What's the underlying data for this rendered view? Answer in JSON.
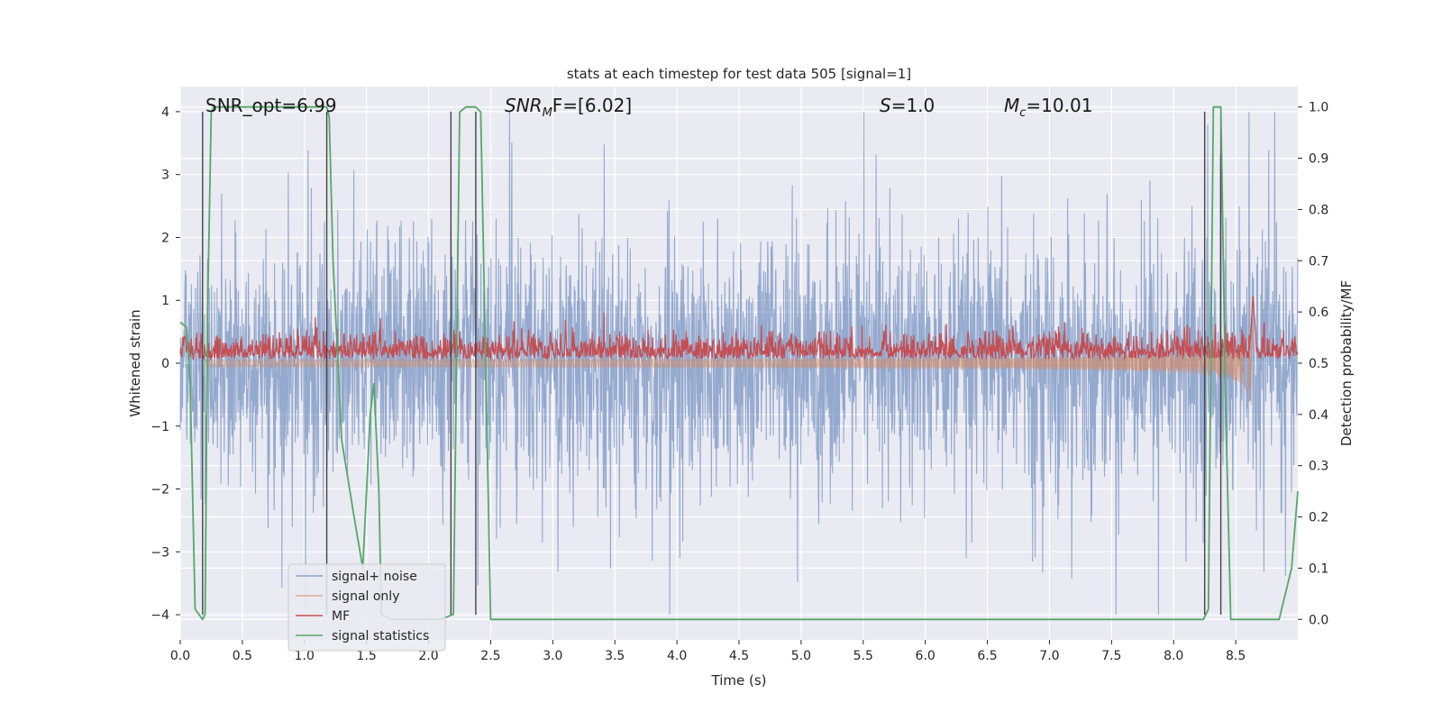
{
  "chart_data": {
    "type": "line",
    "title": "stats at each timestep for test data 505 [signal=1]",
    "xlabel": "Time (s)",
    "ylabel_left": "Whitened strain",
    "ylabel_right": "Detection probability/MF",
    "xlim": [
      0,
      9.0
    ],
    "ylim_left": [
      -4.4,
      4.4
    ],
    "ylim_right": [
      -0.04,
      1.04
    ],
    "x_ticks": [
      0.0,
      0.5,
      1.0,
      1.5,
      2.0,
      2.5,
      3.0,
      3.5,
      4.0,
      4.5,
      5.0,
      5.5,
      6.0,
      6.5,
      7.0,
      7.5,
      8.0,
      8.5
    ],
    "x_tick_labels": [
      "0.0",
      "0.5",
      "1.0",
      "1.5",
      "2.0",
      "2.5",
      "3.0",
      "3.5",
      "4.0",
      "4.5",
      "5.0",
      "5.5",
      "6.0",
      "6.5",
      "7.0",
      "7.5",
      "8.0",
      "8.5"
    ],
    "y_left_ticks": [
      -4,
      -3,
      -2,
      -1,
      0,
      1,
      2,
      3,
      4
    ],
    "y_left_tick_labels": [
      "−4",
      "−3",
      "−2",
      "−1",
      "0",
      "1",
      "2",
      "3",
      "4"
    ],
    "y_right_ticks": [
      0.0,
      0.1,
      0.2,
      0.3,
      0.4,
      0.5,
      0.6,
      0.7,
      0.8,
      0.9,
      1.0
    ],
    "y_right_tick_labels": [
      "0.0",
      "0.1",
      "0.2",
      "0.3",
      "0.4",
      "0.5",
      "0.6",
      "0.7",
      "0.8",
      "0.9",
      "1.0"
    ],
    "grid": true,
    "legend_position": "lower-left",
    "background_color": "#eaeaf2",
    "annotations": {
      "snr_opt": "SNR_opt=6.99",
      "snr_mf_a": "SNR",
      "snr_mf_sub": "M",
      "snr_mf_b": "F=[6.02]",
      "s_a": "S",
      "s_b": "=1.0",
      "mc_a": "M",
      "mc_sub": "c",
      "mc_b": "=10.01"
    },
    "series": [
      {
        "name": "signal+ noise",
        "axis": "left",
        "color": "#4c72b0",
        "description_kind": "noise",
        "x_range": [
          0.0,
          9.0
        ],
        "typical_amplitude": 1.6,
        "peak_values": {
          "max": 4.0,
          "min": -4.0
        }
      },
      {
        "name": "signal only",
        "axis": "left",
        "color": "#dd8452",
        "description_kind": "chirp",
        "x_range": [
          0.2,
          8.65
        ],
        "amplitude_start": 0.02,
        "amplitude_peak": 1.3,
        "merger_time": 8.64
      },
      {
        "name": "MF",
        "axis": "right",
        "color": "#c44e52",
        "description_kind": "noise",
        "x_range": [
          0.0,
          9.0
        ],
        "baseline": 0.52,
        "spread": 0.03,
        "peak": {
          "x": 8.64,
          "y": 0.63
        }
      },
      {
        "name": "signal statistics",
        "axis": "right",
        "color": "#55a868",
        "x": [
          0.0,
          0.05,
          0.08,
          0.12,
          0.18,
          0.2,
          0.22,
          0.25,
          0.27,
          0.5,
          0.8,
          1.0,
          1.15,
          1.18,
          1.2,
          1.23,
          1.3,
          1.4,
          1.47,
          1.5,
          1.53,
          1.56,
          1.6,
          1.62,
          1.7,
          1.8,
          2.0,
          2.1,
          2.2,
          2.25,
          2.3,
          2.38,
          2.42,
          2.5,
          3.0,
          4.0,
          5.0,
          6.0,
          7.0,
          8.0,
          8.24,
          8.28,
          8.32,
          8.36,
          8.38,
          8.42,
          8.46,
          8.55,
          8.7,
          8.85,
          8.95,
          9.0
        ],
        "y": [
          0.58,
          0.57,
          0.46,
          0.02,
          0.0,
          0.01,
          0.6,
          0.99,
          1.0,
          1.0,
          1.0,
          1.0,
          1.0,
          1.0,
          0.98,
          0.7,
          0.35,
          0.2,
          0.1,
          0.25,
          0.4,
          0.46,
          0.25,
          0.01,
          0.0,
          0.0,
          0.0,
          0.0,
          0.01,
          0.99,
          1.0,
          1.0,
          0.99,
          0.0,
          0.0,
          0.0,
          0.0,
          0.0,
          0.0,
          0.0,
          0.0,
          0.02,
          1.0,
          1.0,
          1.0,
          0.4,
          0.0,
          0.0,
          0.0,
          0.0,
          0.1,
          0.25
        ]
      }
    ],
    "vertical_lines": {
      "axis": "left",
      "color": "#444444",
      "x": [
        0.18,
        1.18,
        2.18,
        2.38,
        8.25,
        8.38
      ],
      "y_range": [
        -4,
        4
      ]
    }
  }
}
